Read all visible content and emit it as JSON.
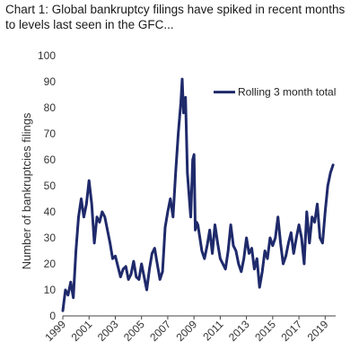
{
  "chart_data": {
    "type": "line",
    "title": "Chart 1: Global bankruptcy filings have spiked in recent months to levels last seen in the GFC...",
    "xlabel": "",
    "ylabel": "Number of bankruptcies filings",
    "ylim": [
      0,
      100
    ],
    "xlim": [
      1999.0,
      2019.8
    ],
    "yticks": [
      0,
      10,
      20,
      30,
      40,
      50,
      60,
      70,
      80,
      90,
      100
    ],
    "xticks": [
      "1999",
      "2001",
      "2003",
      "2005",
      "2007",
      "2009",
      "2011",
      "2013",
      "2015",
      "2017",
      "2019"
    ],
    "grid": false,
    "legend": {
      "position": "top-right"
    },
    "colors": {
      "series": "#1f2a6b"
    },
    "series": [
      {
        "name": "Rolling 3 month total",
        "x": [
          1999.0,
          1999.2,
          1999.4,
          1999.6,
          1999.8,
          2000.0,
          2000.2,
          2000.4,
          2000.6,
          2000.8,
          2001.0,
          2001.2,
          2001.4,
          2001.6,
          2001.8,
          2002.0,
          2002.2,
          2002.4,
          2002.6,
          2002.8,
          2003.0,
          2003.2,
          2003.4,
          2003.6,
          2003.8,
          2004.0,
          2004.2,
          2004.4,
          2004.6,
          2004.8,
          2005.0,
          2005.2,
          2005.4,
          2005.6,
          2005.8,
          2006.0,
          2006.2,
          2006.4,
          2006.6,
          2006.8,
          2007.0,
          2007.2,
          2007.4,
          2007.6,
          2007.8,
          2008.0,
          2008.1,
          2008.2,
          2008.35,
          2008.5,
          2008.6,
          2008.75,
          2008.9,
          2009.0,
          2009.1,
          2009.2,
          2009.3,
          2009.45,
          2009.6,
          2009.8,
          2010.0,
          2010.2,
          2010.4,
          2010.6,
          2010.8,
          2011.0,
          2011.2,
          2011.4,
          2011.6,
          2011.8,
          2012.0,
          2012.2,
          2012.4,
          2012.6,
          2012.8,
          2013.0,
          2013.2,
          2013.4,
          2013.6,
          2013.8,
          2014.0,
          2014.2,
          2014.4,
          2014.6,
          2014.8,
          2015.0,
          2015.2,
          2015.4,
          2015.6,
          2015.8,
          2016.0,
          2016.2,
          2016.4,
          2016.6,
          2016.8,
          2017.0,
          2017.2,
          2017.4,
          2017.6,
          2017.8,
          2018.0,
          2018.2,
          2018.4,
          2018.6,
          2018.8,
          2019.0,
          2019.2,
          2019.4,
          2019.6
        ],
        "values": [
          2,
          10,
          8,
          13,
          7,
          25,
          38,
          45,
          38,
          43,
          52,
          43,
          28,
          38,
          36,
          40,
          38,
          33,
          28,
          22,
          23,
          19,
          15,
          18,
          19,
          14,
          16,
          21,
          15,
          14,
          20,
          15,
          10,
          18,
          24,
          26,
          20,
          14,
          17,
          34,
          40,
          45,
          38,
          55,
          70,
          82,
          91,
          78,
          84,
          55,
          48,
          38,
          60,
          62,
          33,
          36,
          35,
          30,
          25,
          22,
          27,
          33,
          24,
          35,
          28,
          22,
          20,
          18,
          25,
          35,
          27,
          25,
          20,
          17,
          22,
          30,
          24,
          26,
          18,
          22,
          11,
          17,
          25,
          22,
          30,
          27,
          30,
          38,
          28,
          20,
          23,
          28,
          32,
          24,
          30,
          35,
          30,
          20,
          40,
          28,
          38,
          36,
          43,
          30,
          28,
          40,
          50,
          55,
          58
        ]
      }
    ]
  }
}
